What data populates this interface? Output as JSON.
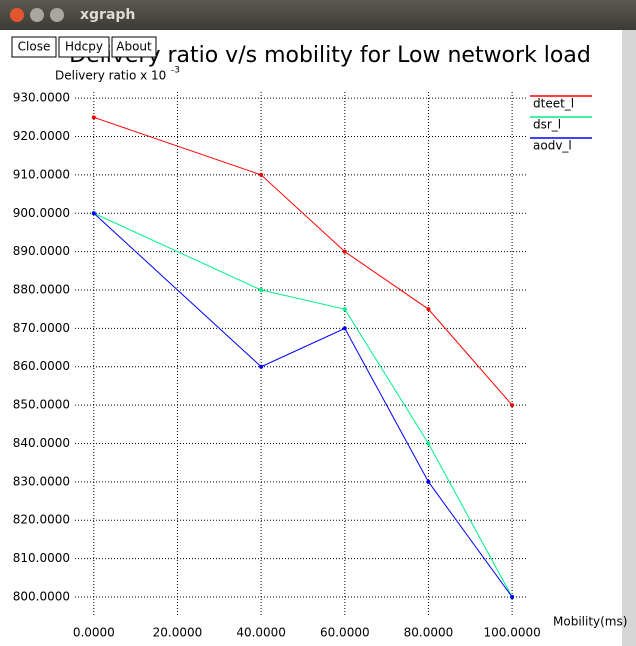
{
  "window_title": "xgraph",
  "buttons": [
    "Close",
    "Hdcpy",
    "About"
  ],
  "chart_data": {
    "type": "line",
    "title": "Delivery ratio v/s mobility for Low network load",
    "y_label": "Delivery ratio x 10",
    "y_label_exponent": "-3",
    "x_label": "Mobility(ms)",
    "x": [
      0,
      40,
      60,
      80,
      100
    ],
    "series": [
      {
        "name": "dteet_l",
        "color": "#ff0000",
        "values": [
          925,
          910,
          890,
          875,
          850
        ]
      },
      {
        "name": "dsr_l",
        "color": "#00ee88",
        "values": [
          900,
          880,
          875,
          840,
          800
        ]
      },
      {
        "name": "aodv_l",
        "color": "#0000ff",
        "values": [
          900,
          860,
          870,
          830,
          800
        ]
      }
    ],
    "xlim": [
      -4.5,
      103.8
    ],
    "ylim": [
      795.3,
      931.6
    ],
    "xticks": [
      {
        "value": 0,
        "label": "0.0000"
      },
      {
        "value": 20,
        "label": "20.0000"
      },
      {
        "value": 40,
        "label": "40.0000"
      },
      {
        "value": 60,
        "label": "60.0000"
      },
      {
        "value": 80,
        "label": "80.0000"
      },
      {
        "value": 100,
        "label": "100.0000"
      }
    ],
    "yticks": [
      {
        "value": 800,
        "label": "800.0000"
      },
      {
        "value": 810,
        "label": "810.0000"
      },
      {
        "value": 820,
        "label": "820.0000"
      },
      {
        "value": 830,
        "label": "830.0000"
      },
      {
        "value": 840,
        "label": "840.0000"
      },
      {
        "value": 850,
        "label": "850.0000"
      },
      {
        "value": 860,
        "label": "860.0000"
      },
      {
        "value": 870,
        "label": "870.0000"
      },
      {
        "value": 880,
        "label": "880.0000"
      },
      {
        "value": 890,
        "label": "890.0000"
      },
      {
        "value": 900,
        "label": "900.0000"
      },
      {
        "value": 910,
        "label": "910.0000"
      },
      {
        "value": 920,
        "label": "920.0000"
      },
      {
        "value": 930,
        "label": "930.0000"
      }
    ],
    "grid": true,
    "legend": "top-right"
  }
}
